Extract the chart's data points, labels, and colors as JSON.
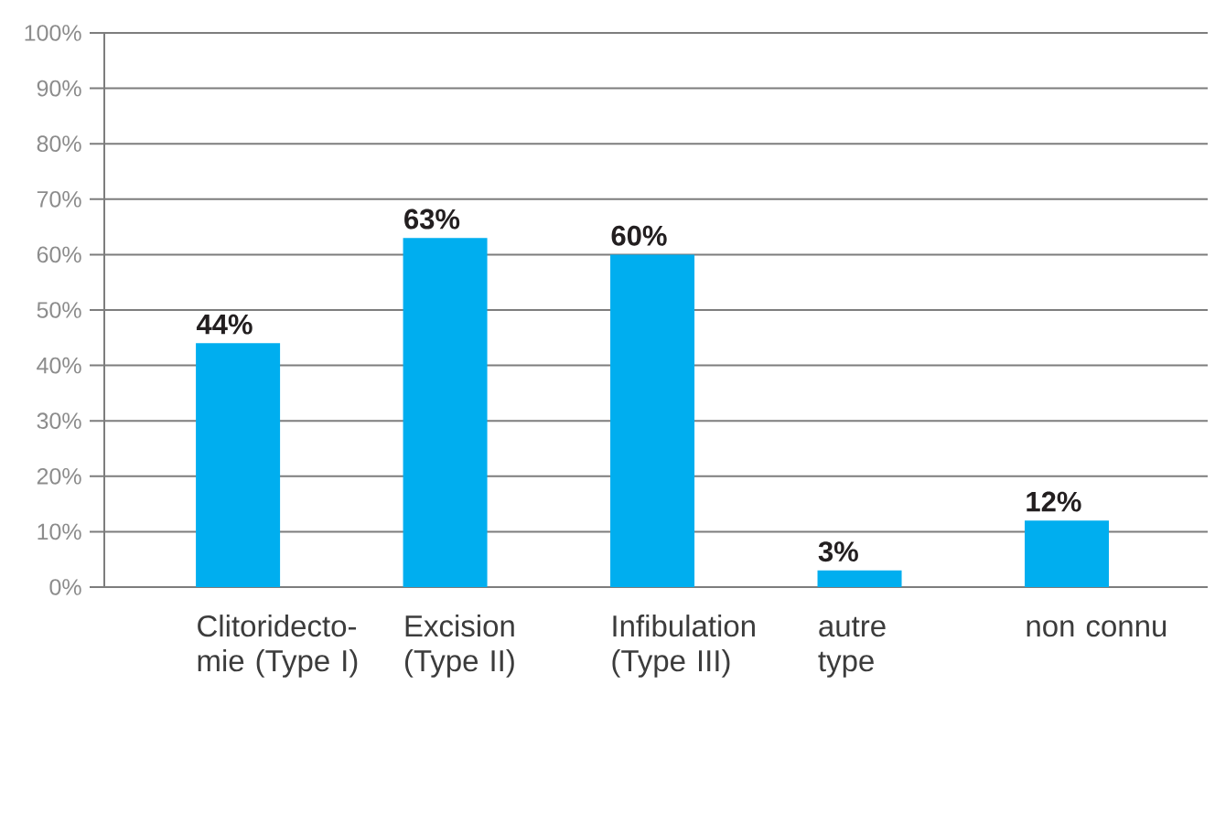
{
  "chart_data": {
    "type": "bar",
    "categories": [
      "Clitoridecto-mie (Type I)",
      "Excision (Type II)",
      "Infibulation (Type III)",
      "autre type",
      "non connu"
    ],
    "values": [
      44,
      63,
      60,
      3,
      12
    ],
    "value_labels": [
      "44%",
      "63%",
      "60%",
      "3%",
      "12%"
    ],
    "color": "#00aeef",
    "ylim": [
      0,
      100
    ],
    "yticks": [
      {
        "value": 0,
        "label": "0%"
      },
      {
        "value": 10,
        "label": "10%"
      },
      {
        "value": 20,
        "label": "20%"
      },
      {
        "value": 30,
        "label": "30%"
      },
      {
        "value": 40,
        "label": "40%"
      },
      {
        "value": 50,
        "label": "50%"
      },
      {
        "value": 60,
        "label": "60%"
      },
      {
        "value": 70,
        "label": "70%"
      },
      {
        "value": 80,
        "label": "80%"
      },
      {
        "value": 90,
        "label": "90%"
      },
      {
        "value": 100,
        "label": "100%"
      }
    ],
    "grid": "y"
  }
}
